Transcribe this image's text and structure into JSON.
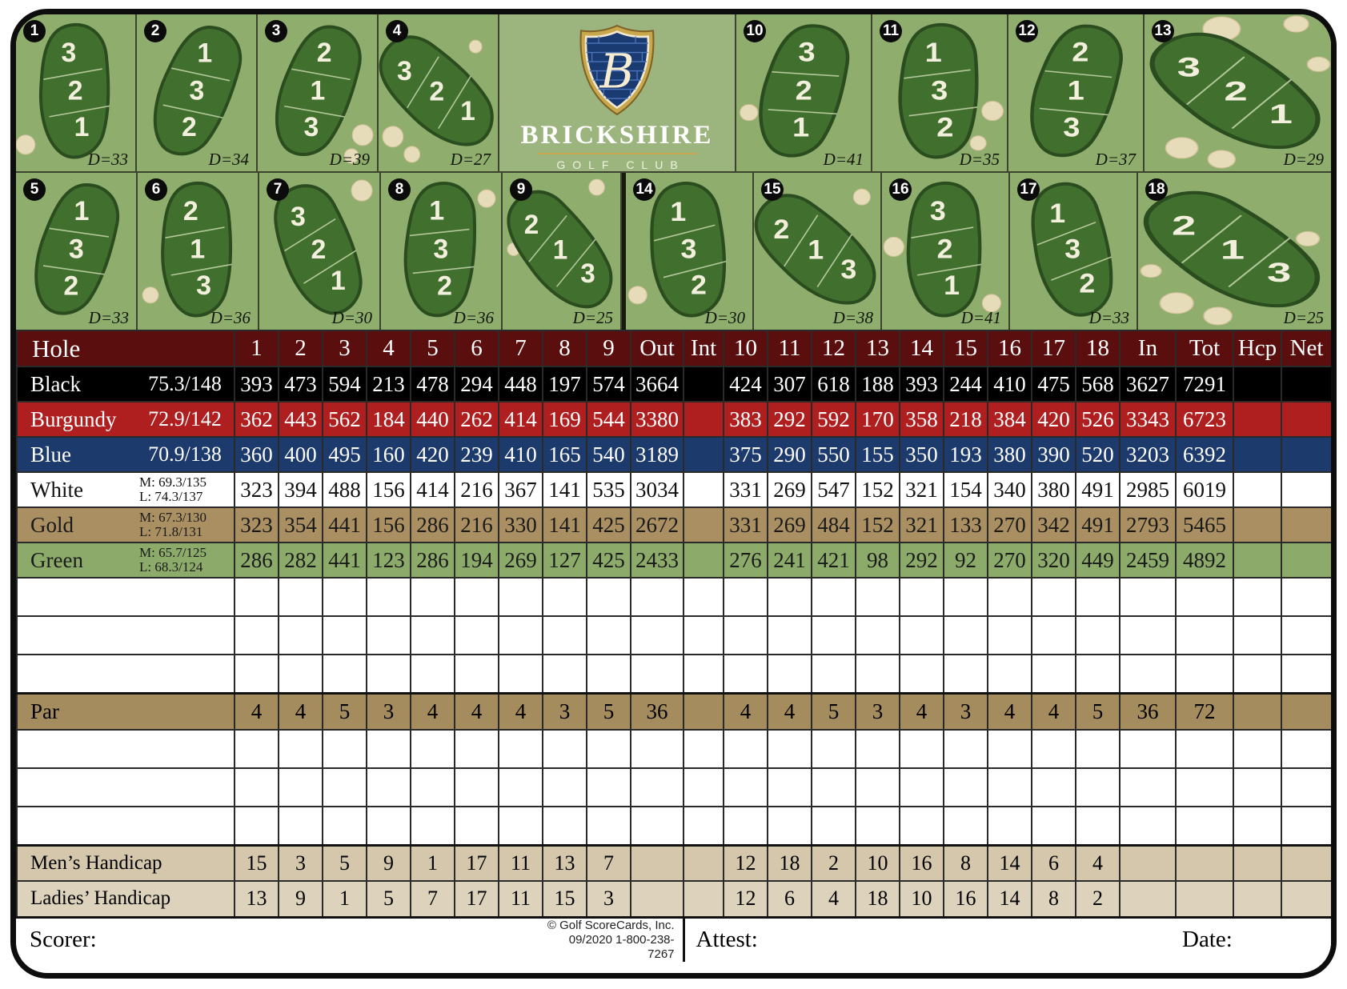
{
  "club": {
    "name": "BRICKSHIRE",
    "subtitle": "GOLF CLUB",
    "monogram": "B"
  },
  "holes": [
    {
      "number": "1",
      "distance": "D=33",
      "zones": [
        "3",
        "2",
        "1"
      ]
    },
    {
      "number": "2",
      "distance": "D=34",
      "zones": [
        "1",
        "3",
        "2"
      ]
    },
    {
      "number": "3",
      "distance": "D=39",
      "zones": [
        "2",
        "1",
        "3"
      ]
    },
    {
      "number": "4",
      "distance": "D=27",
      "zones": [
        "3",
        "2",
        "1"
      ]
    },
    {
      "number": "5",
      "distance": "D=33",
      "zones": [
        "1",
        "3",
        "2"
      ]
    },
    {
      "number": "6",
      "distance": "D=36",
      "zones": [
        "2",
        "1",
        "3"
      ]
    },
    {
      "number": "7",
      "distance": "D=30",
      "zones": [
        "3",
        "2",
        "1"
      ]
    },
    {
      "number": "8",
      "distance": "D=36",
      "zones": [
        "1",
        "3",
        "2"
      ]
    },
    {
      "number": "9",
      "distance": "D=25",
      "zones": [
        "2",
        "1",
        "3"
      ]
    },
    {
      "number": "10",
      "distance": "D=41",
      "zones": [
        "3",
        "2",
        "1"
      ]
    },
    {
      "number": "11",
      "distance": "D=35",
      "zones": [
        "1",
        "3",
        "2"
      ]
    },
    {
      "number": "12",
      "distance": "D=37",
      "zones": [
        "2",
        "1",
        "3"
      ]
    },
    {
      "number": "13",
      "distance": "D=29",
      "zones": [
        "3",
        "2",
        "1"
      ]
    },
    {
      "number": "14",
      "distance": "D=30",
      "zones": [
        "1",
        "3",
        "2"
      ]
    },
    {
      "number": "15",
      "distance": "D=38",
      "zones": [
        "2",
        "1",
        "3"
      ]
    },
    {
      "number": "16",
      "distance": "D=41",
      "zones": [
        "3",
        "2",
        "1"
      ]
    },
    {
      "number": "17",
      "distance": "D=33",
      "zones": [
        "1",
        "3",
        "2"
      ]
    },
    {
      "number": "18",
      "distance": "D=25",
      "zones": [
        "2",
        "1",
        "3"
      ]
    }
  ],
  "table": {
    "headers": {
      "hole": "Hole",
      "front": [
        "1",
        "2",
        "3",
        "4",
        "5",
        "6",
        "7",
        "8",
        "9"
      ],
      "out": "Out",
      "int": "Int",
      "back": [
        "10",
        "11",
        "12",
        "13",
        "14",
        "15",
        "16",
        "17",
        "18"
      ],
      "in": "In",
      "tot": "Tot",
      "hcp": "Hcp",
      "net": "Net"
    },
    "tees": [
      {
        "name": "Black",
        "rating": "75.3/148",
        "bg": "#000000",
        "fg": "#ffffff",
        "front": [
          "393",
          "473",
          "594",
          "213",
          "478",
          "294",
          "448",
          "197",
          "574"
        ],
        "out": "3664",
        "back": [
          "424",
          "307",
          "618",
          "188",
          "393",
          "244",
          "410",
          "475",
          "568"
        ],
        "in": "3627",
        "tot": "7291"
      },
      {
        "name": "Burgundy",
        "rating": "72.9/142",
        "bg": "#b01f1f",
        "fg": "#ffffff",
        "front": [
          "362",
          "443",
          "562",
          "184",
          "440",
          "262",
          "414",
          "169",
          "544"
        ],
        "out": "3380",
        "back": [
          "383",
          "292",
          "592",
          "170",
          "358",
          "218",
          "384",
          "420",
          "526"
        ],
        "in": "3343",
        "tot": "6723"
      },
      {
        "name": "Blue",
        "rating": "70.9/138",
        "bg": "#1c3a6b",
        "fg": "#ffffff",
        "front": [
          "360",
          "400",
          "495",
          "160",
          "420",
          "239",
          "410",
          "165",
          "540"
        ],
        "out": "3189",
        "back": [
          "375",
          "290",
          "550",
          "155",
          "350",
          "193",
          "380",
          "390",
          "520"
        ],
        "in": "3203",
        "tot": "6392"
      },
      {
        "name": "White",
        "rating_m": "M: 69.3/135",
        "rating_l": "L: 74.3/137",
        "bg": "#ffffff",
        "fg": "#111111",
        "front": [
          "323",
          "394",
          "488",
          "156",
          "414",
          "216",
          "367",
          "141",
          "535"
        ],
        "out": "3034",
        "back": [
          "331",
          "269",
          "547",
          "152",
          "321",
          "154",
          "340",
          "380",
          "491"
        ],
        "in": "2985",
        "tot": "6019"
      },
      {
        "name": "Gold",
        "rating_m": "M: 67.3/130",
        "rating_l": "L: 71.8/131",
        "bg": "#a98f62",
        "fg": "#1a1a1a",
        "front": [
          "323",
          "354",
          "441",
          "156",
          "286",
          "216",
          "330",
          "141",
          "425"
        ],
        "out": "2672",
        "back": [
          "331",
          "269",
          "484",
          "152",
          "321",
          "133",
          "270",
          "342",
          "491"
        ],
        "in": "2793",
        "tot": "5465"
      },
      {
        "name": "Green",
        "rating_m": "M: 65.7/125",
        "rating_l": "L: 68.3/124",
        "bg": "#8cab6a",
        "fg": "#1a1a1a",
        "front": [
          "286",
          "282",
          "441",
          "123",
          "286",
          "194",
          "269",
          "127",
          "425"
        ],
        "out": "2433",
        "back": [
          "276",
          "241",
          "421",
          "98",
          "292",
          "92",
          "270",
          "320",
          "449"
        ],
        "in": "2459",
        "tot": "4892"
      }
    ],
    "par": {
      "label": "Par",
      "front": [
        "4",
        "4",
        "5",
        "3",
        "4",
        "4",
        "4",
        "3",
        "5"
      ],
      "out": "36",
      "back": [
        "4",
        "4",
        "5",
        "3",
        "4",
        "3",
        "4",
        "4",
        "5"
      ],
      "in": "36",
      "tot": "72"
    },
    "mens_handicap": {
      "label": "Men’s Handicap",
      "front": [
        "15",
        "3",
        "5",
        "9",
        "1",
        "17",
        "11",
        "13",
        "7"
      ],
      "back": [
        "12",
        "18",
        "2",
        "10",
        "16",
        "8",
        "14",
        "6",
        "4"
      ]
    },
    "ladies_handicap": {
      "label": "Ladies’ Handicap",
      "front": [
        "13",
        "9",
        "1",
        "5",
        "7",
        "17",
        "11",
        "15",
        "3"
      ],
      "back": [
        "12",
        "6",
        "4",
        "18",
        "10",
        "16",
        "14",
        "8",
        "2"
      ]
    }
  },
  "footer": {
    "scorer": "Scorer:",
    "attest": "Attest:",
    "date": "Date:",
    "copyright": "©  Golf ScoreCards, Inc.",
    "issue": "09/2020   1-800-238-7267"
  },
  "colors": {
    "course_green": "#8fae6d",
    "logo_green": "#9cb57e",
    "blob_green": "#41702e",
    "blob_edge": "#2a4c1f",
    "sand": "#e7dcba",
    "header_maroon": "#5a0e0e",
    "par_tan": "#a58c5f",
    "mens_tan": "#d4c7ab",
    "ladies_tan": "#ddd3bc",
    "shield_navy": "#1a3a72",
    "shield_gold": "#c9a84c"
  }
}
